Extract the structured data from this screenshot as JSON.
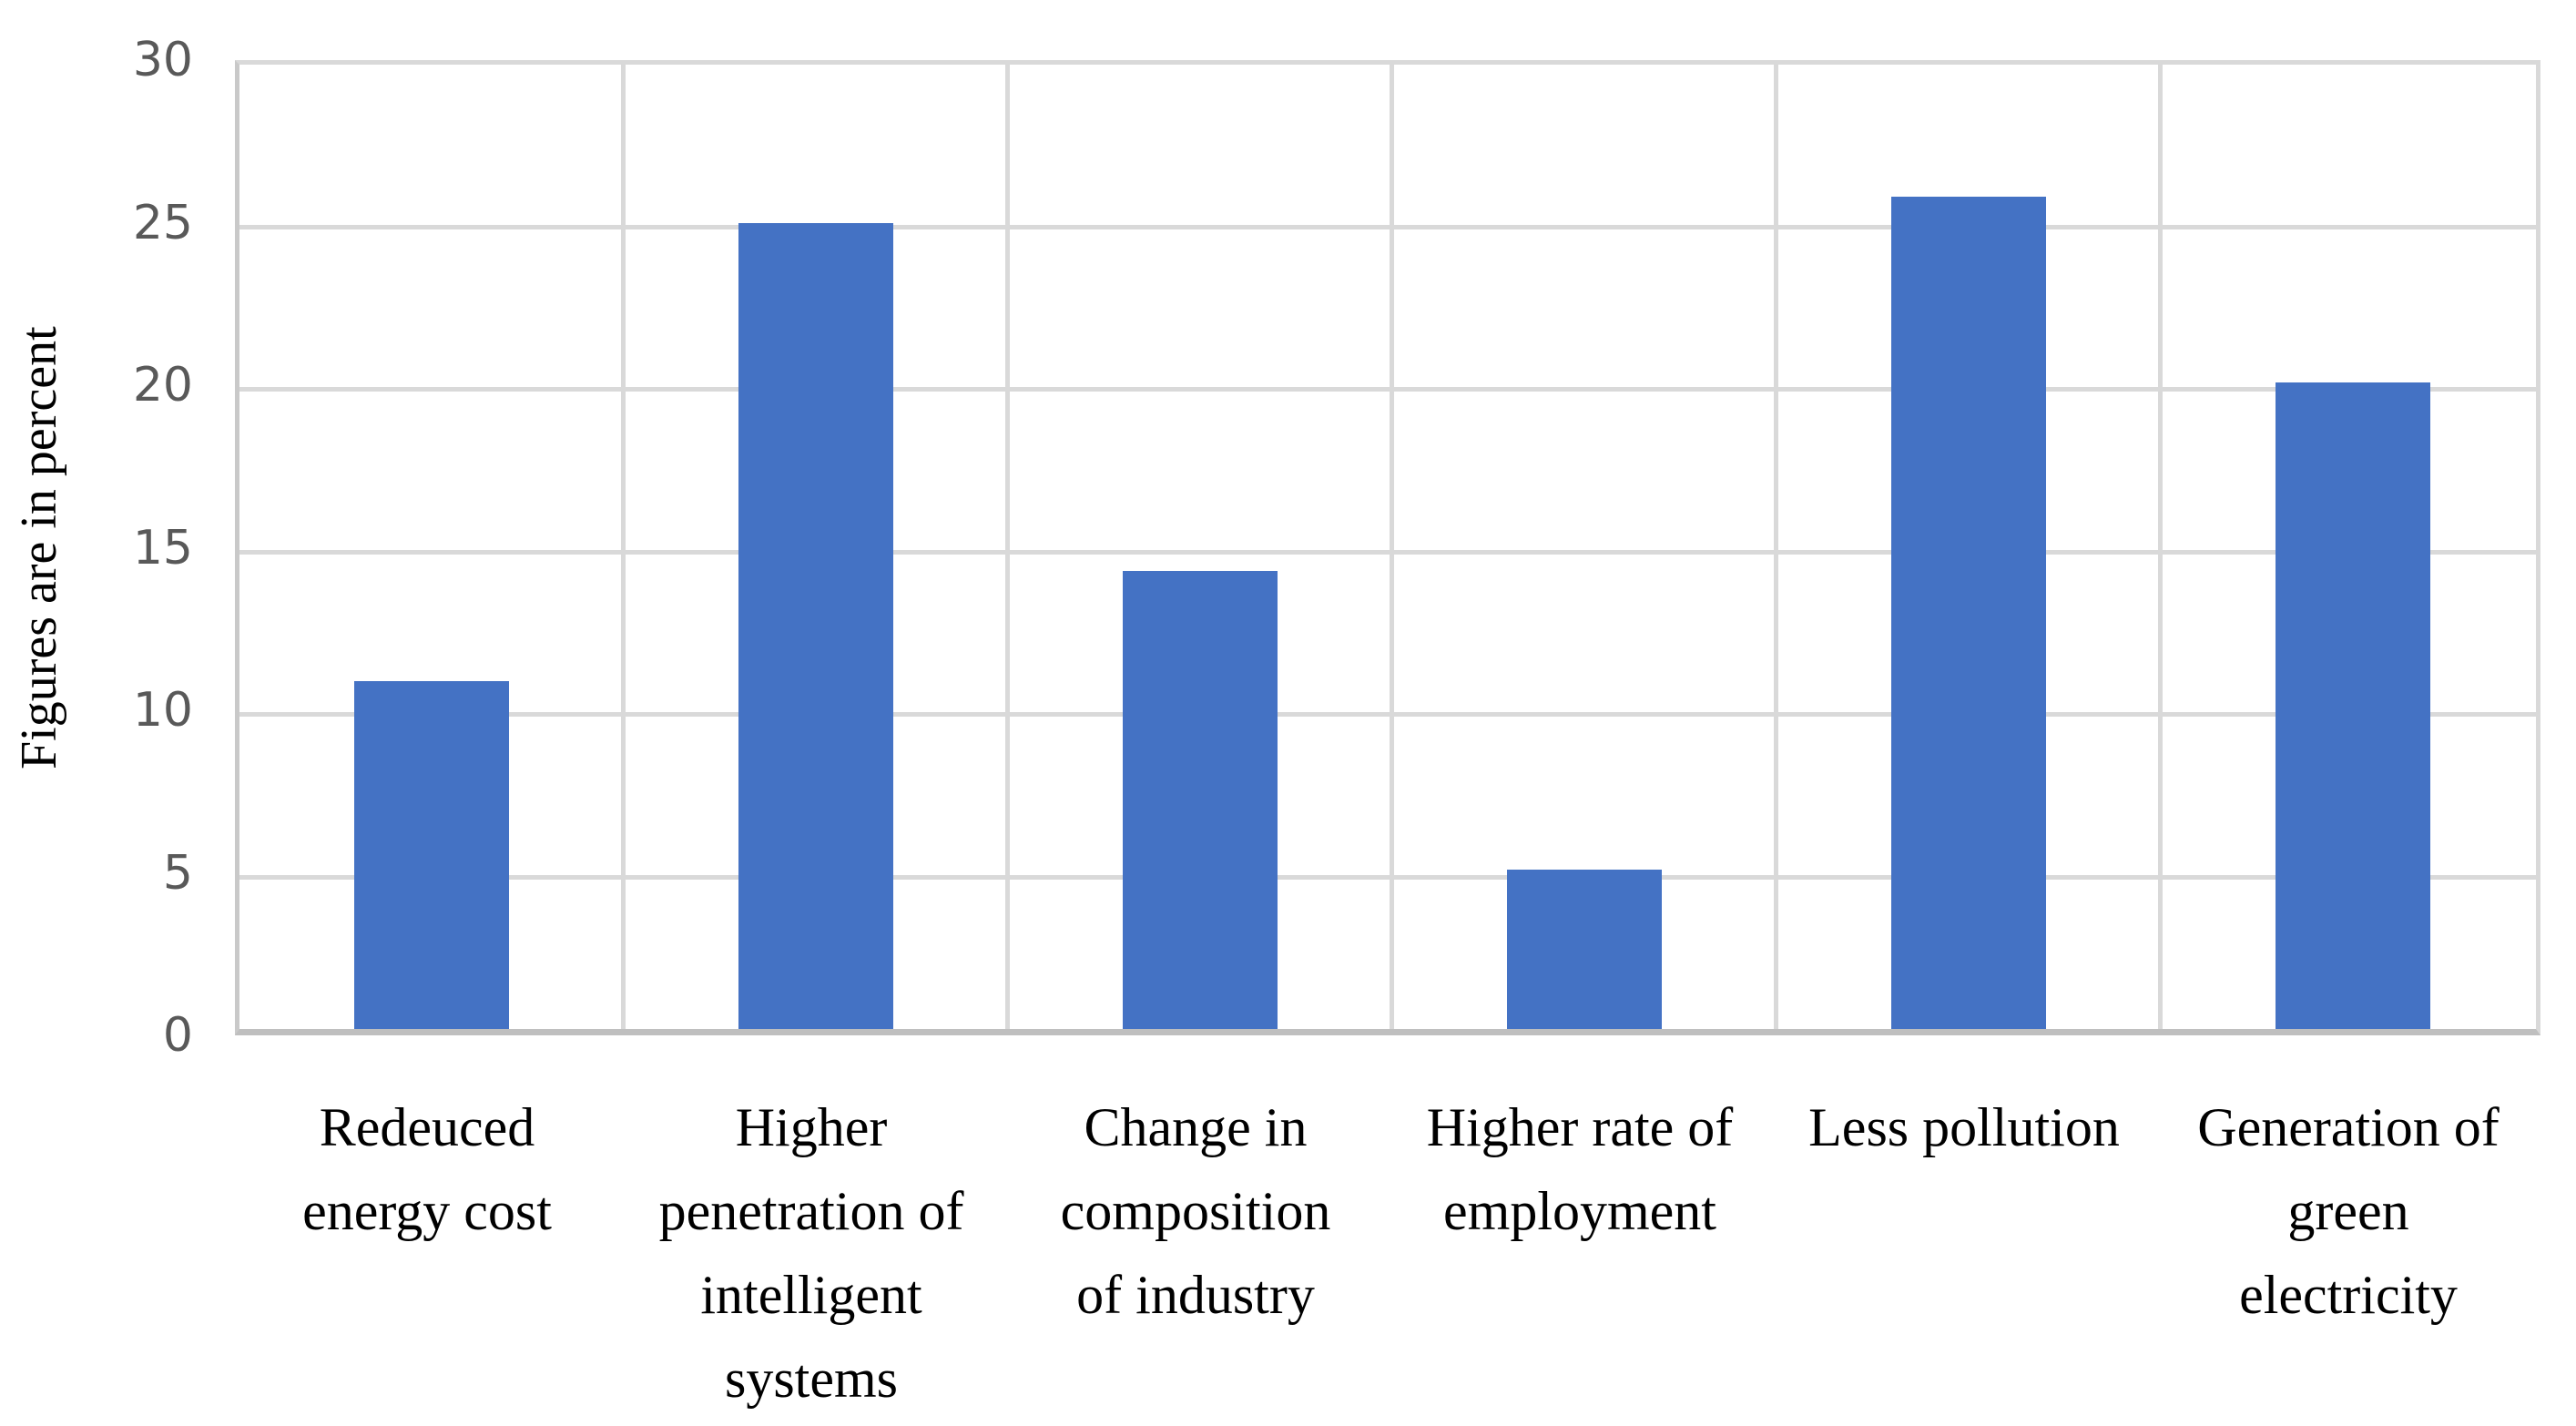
{
  "chart_data": {
    "type": "bar",
    "title": "",
    "xlabel": "",
    "ylabel": "Figures are in percent",
    "categories": [
      "Redeuced energy cost",
      "Higher penetration of intelligent systems",
      "Change in composition of industry",
      "Higher rate of employment",
      "Less pollution",
      "Generation of green electricity"
    ],
    "category_lines": [
      [
        "Redeuced",
        "energy cost"
      ],
      [
        "Higher",
        "penetration of",
        "intelligent",
        "systems"
      ],
      [
        "Change in",
        "composition",
        "of industry"
      ],
      [
        "Higher rate of",
        "employment"
      ],
      [
        "Less pollution"
      ],
      [
        "Generation of",
        "green",
        "electricity"
      ]
    ],
    "values": [
      10.7,
      24.8,
      14.1,
      4.9,
      25.6,
      19.9
    ],
    "ylim": [
      0,
      30
    ],
    "ytick_step": 5,
    "ytick_labels": [
      "0",
      "5",
      "10",
      "15",
      "20",
      "25",
      "30"
    ],
    "grid": "on",
    "legend": "none",
    "bar_color": "#4472C4",
    "gridline_color": "#D9D9D9",
    "axis_line_color": "#BFBFBF",
    "tick_label_color": "#595959",
    "category_label_color": "#000000",
    "background_color": "#FFFFFF"
  }
}
